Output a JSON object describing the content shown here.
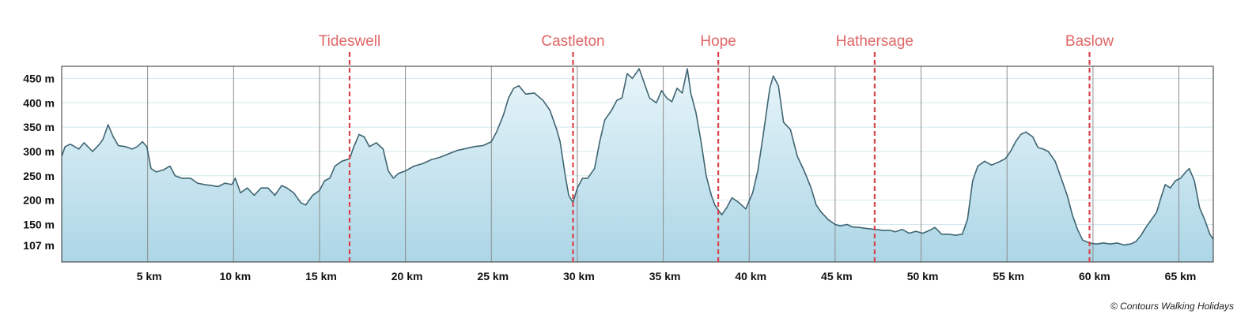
{
  "chart_data": {
    "type": "area",
    "xlabel": "",
    "ylabel": "",
    "xlim": [
      0,
      67
    ],
    "ylim": [
      73,
      475
    ],
    "grid": true,
    "x_ticks": [
      5,
      10,
      15,
      20,
      25,
      30,
      35,
      40,
      45,
      50,
      55,
      60,
      65
    ],
    "x_tick_labels": [
      "5 km",
      "10 km",
      "15 km",
      "20 km",
      "25 km",
      "30 km",
      "35 km",
      "40 km",
      "45 km",
      "50 km",
      "55 km",
      "60 km",
      "65 km"
    ],
    "y_ticks": [
      107,
      150,
      200,
      250,
      300,
      350,
      400,
      450
    ],
    "y_tick_labels": [
      "107 m",
      "150 m",
      "200 m",
      "250 m",
      "300 m",
      "350 m",
      "400 m",
      "450 m"
    ],
    "markers": [
      {
        "label": "Tideswell",
        "x": 16.75
      },
      {
        "label": "Castleton",
        "x": 29.75
      },
      {
        "label": "Hope",
        "x": 38.2
      },
      {
        "label": "Hathersage",
        "x": 47.3
      },
      {
        "label": "Baslow",
        "x": 59.8
      }
    ],
    "series": [
      {
        "x": [
          0,
          0.2,
          0.5,
          1.0,
          1.3,
          1.8,
          2.2,
          2.4,
          2.7,
          3.0,
          3.3,
          3.7,
          4.1,
          4.4,
          4.7,
          4.95,
          5.2,
          5.5,
          5.9,
          6.3,
          6.6,
          7.0,
          7.5,
          7.9,
          8.3,
          8.7,
          9.1,
          9.5,
          9.9,
          10.1,
          10.4,
          10.8,
          11.2,
          11.6,
          12.0,
          12.4,
          12.8,
          13.1,
          13.5,
          13.9,
          14.2,
          14.6,
          15.0,
          15.3,
          15.6,
          15.9,
          16.3,
          16.75,
          17.0,
          17.3,
          17.6,
          17.9,
          18.3,
          18.7,
          19.0,
          19.3,
          19.6,
          20.0,
          20.5,
          21.0,
          21.5,
          22.0,
          22.5,
          23.0,
          23.5,
          24.0,
          24.5,
          25.0,
          25.3,
          25.7,
          26.0,
          26.3,
          26.6,
          27.0,
          27.5,
          28.0,
          28.4,
          28.8,
          29.0,
          29.3,
          29.5,
          29.75,
          30.0,
          30.3,
          30.6,
          31.0,
          31.3,
          31.6,
          32.0,
          32.3,
          32.6,
          32.9,
          33.2,
          33.6,
          33.9,
          34.2,
          34.6,
          34.9,
          35.2,
          35.5,
          35.8,
          36.1,
          36.4,
          36.6,
          36.9,
          37.2,
          37.5,
          37.8,
          38.0,
          38.2,
          38.4,
          38.7,
          39.0,
          39.4,
          39.8,
          40.2,
          40.5,
          40.8,
          41.2,
          41.4,
          41.7,
          42.0,
          42.4,
          42.8,
          43.2,
          43.6,
          43.9,
          44.2,
          44.6,
          45.0,
          45.3,
          45.7,
          46.0,
          46.4,
          46.8,
          47.3,
          47.8,
          48.2,
          48.5,
          48.9,
          49.3,
          49.7,
          50.1,
          50.5,
          50.8,
          51.2,
          51.6,
          52.0,
          52.4,
          52.7,
          53.0,
          53.3,
          53.7,
          54.1,
          54.5,
          54.9,
          55.2,
          55.5,
          55.8,
          56.1,
          56.5,
          56.8,
          57.1,
          57.4,
          57.8,
          58.2,
          58.5,
          58.8,
          59.1,
          59.4,
          59.8,
          60.2,
          60.6,
          61.0,
          61.4,
          61.8,
          62.2,
          62.5,
          62.8,
          63.1,
          63.4,
          63.7,
          64.0,
          64.2,
          64.5,
          64.8,
          65.1,
          65.4,
          65.6,
          65.9,
          66.2,
          66.5,
          66.8,
          67.0
        ],
        "y": [
          290,
          310,
          315,
          305,
          318,
          300,
          315,
          325,
          355,
          330,
          312,
          310,
          305,
          310,
          320,
          310,
          265,
          258,
          262,
          270,
          250,
          245,
          245,
          235,
          232,
          230,
          228,
          235,
          232,
          245,
          215,
          225,
          210,
          225,
          225,
          210,
          230,
          225,
          215,
          195,
          190,
          210,
          220,
          240,
          245,
          270,
          280,
          285,
          310,
          335,
          330,
          310,
          318,
          305,
          260,
          245,
          255,
          260,
          270,
          275,
          283,
          288,
          295,
          302,
          306,
          310,
          312,
          320,
          340,
          375,
          410,
          430,
          435,
          418,
          420,
          405,
          385,
          345,
          320,
          250,
          210,
          195,
          225,
          245,
          245,
          265,
          320,
          365,
          385,
          405,
          410,
          460,
          450,
          470,
          440,
          410,
          400,
          425,
          410,
          402,
          430,
          420,
          470,
          420,
          380,
          320,
          250,
          210,
          190,
          180,
          170,
          185,
          205,
          195,
          182,
          215,
          260,
          330,
          430,
          455,
          435,
          360,
          345,
          290,
          260,
          225,
          190,
          175,
          160,
          150,
          147,
          150,
          145,
          144,
          142,
          140,
          138,
          138,
          135,
          140,
          132,
          136,
          132,
          138,
          144,
          130,
          130,
          128,
          130,
          160,
          240,
          270,
          280,
          272,
          278,
          285,
          300,
          320,
          335,
          340,
          330,
          308,
          305,
          300,
          280,
          240,
          210,
          170,
          140,
          118,
          112,
          110,
          112,
          110,
          112,
          108,
          110,
          115,
          128,
          145,
          160,
          175,
          210,
          232,
          225,
          240,
          245,
          258,
          265,
          240,
          185,
          160,
          130,
          120
        ]
      }
    ]
  },
  "credit": "© Contours Walking Holidays",
  "colors": {
    "line": "#3f6572",
    "fill_top": "#e8f5fa",
    "fill_bottom": "#acd6e6",
    "marker": "#d9434a",
    "marker_label": "#e06666",
    "grid_h": "#d3e7ee",
    "grid_v": "#8c8c8c"
  }
}
